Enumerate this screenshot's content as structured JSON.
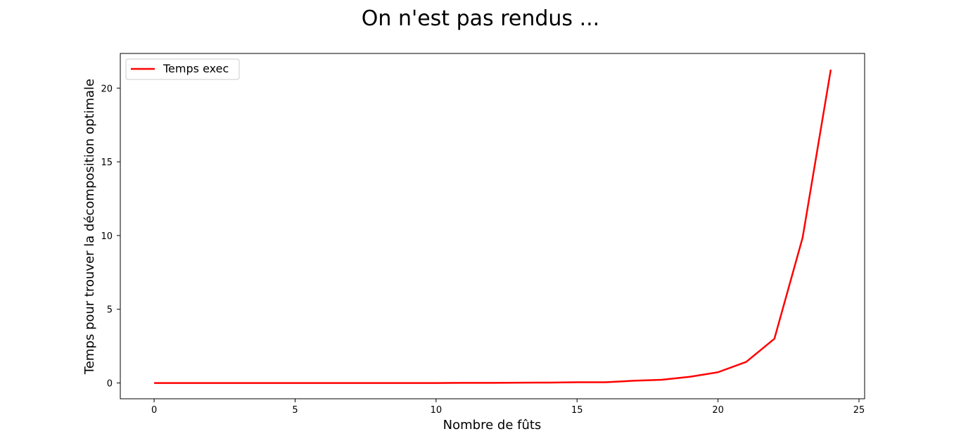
{
  "chart_data": {
    "type": "line",
    "title": "On n'est pas rendus ...",
    "xlabel": "Nombre de fûts",
    "ylabel": "Temps pour trouver la décomposition optimale",
    "xlim": [
      -1.2,
      25.2
    ],
    "ylim": [
      -1.07,
      22.35
    ],
    "xticks": [
      0,
      5,
      10,
      15,
      20,
      25
    ],
    "yticks": [
      0,
      5,
      10,
      15,
      20
    ],
    "grid": false,
    "legend_position": "top-left",
    "series": [
      {
        "name": "Temps exec",
        "color": "#ff0000",
        "x": [
          0,
          1,
          2,
          3,
          4,
          5,
          6,
          7,
          8,
          9,
          10,
          11,
          12,
          13,
          14,
          15,
          16,
          17,
          18,
          19,
          20,
          21,
          22,
          23,
          24
        ],
        "y": [
          0,
          0,
          0,
          0,
          0,
          0,
          0,
          0,
          0,
          0,
          0,
          0.01,
          0.01,
          0.02,
          0.03,
          0.05,
          0.05,
          0.15,
          0.22,
          0.42,
          0.73,
          1.43,
          3.0,
          9.85,
          21.25
        ]
      }
    ]
  }
}
